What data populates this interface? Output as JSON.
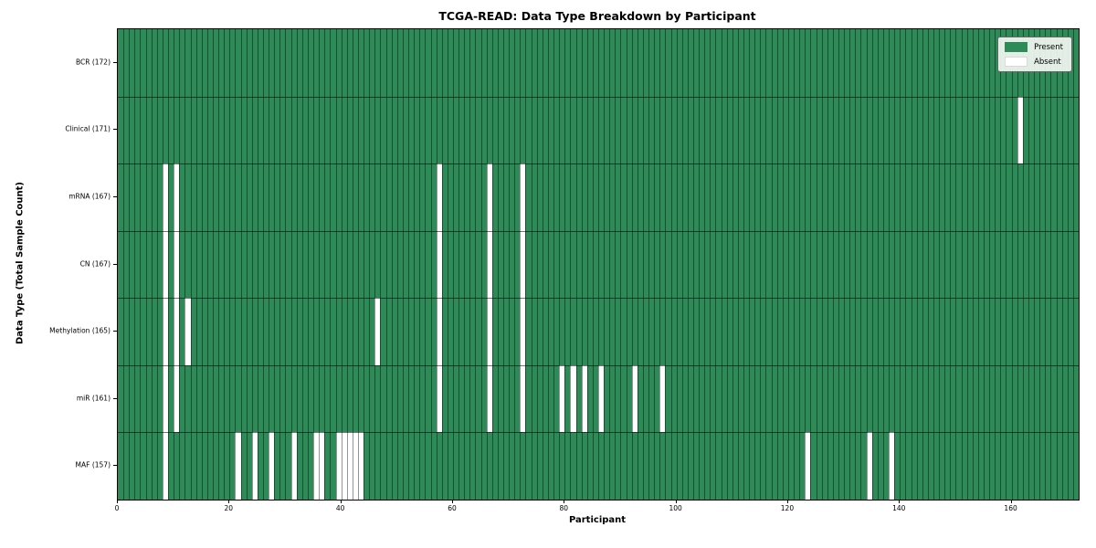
{
  "chart_data": {
    "type": "heatmap",
    "title": "TCGA-READ: Data Type Breakdown by Participant",
    "xlabel": "Participant",
    "ylabel": "Data Type (Total Sample Count)",
    "x_ticks": [
      0,
      20,
      40,
      60,
      80,
      100,
      120,
      140,
      160
    ],
    "n_columns": 172,
    "grid": "on",
    "legend_position": "upper right",
    "legend": {
      "present_label": "Present",
      "absent_label": "Absent"
    },
    "colors": {
      "present": "#2e8b57",
      "absent": "#ffffff"
    },
    "rows": [
      {
        "label": "BCR (172)",
        "data_type": "BCR",
        "total": 172,
        "absent_columns": []
      },
      {
        "label": "Clinical (171)",
        "data_type": "Clinical",
        "total": 171,
        "absent_columns": [
          161
        ]
      },
      {
        "label": "mRNA (167)",
        "data_type": "mRNA",
        "total": 167,
        "absent_columns": [
          8,
          10,
          57,
          66,
          72
        ]
      },
      {
        "label": "CN (167)",
        "data_type": "CN",
        "total": 167,
        "absent_columns": [
          8,
          10,
          57,
          66,
          72
        ]
      },
      {
        "label": "Methylation (165)",
        "data_type": "Methylation",
        "total": 165,
        "absent_columns": [
          8,
          10,
          12,
          46,
          57,
          66,
          72
        ]
      },
      {
        "label": "miR (161)",
        "data_type": "miR",
        "total": 161,
        "absent_columns": [
          8,
          10,
          57,
          66,
          72,
          79,
          81,
          83,
          86,
          92,
          97
        ]
      },
      {
        "label": "MAF (157)",
        "data_type": "MAF",
        "total": 157,
        "absent_columns": [
          8,
          21,
          24,
          27,
          31,
          35,
          36,
          39,
          40,
          41,
          42,
          43,
          123,
          134,
          138
        ]
      }
    ]
  }
}
